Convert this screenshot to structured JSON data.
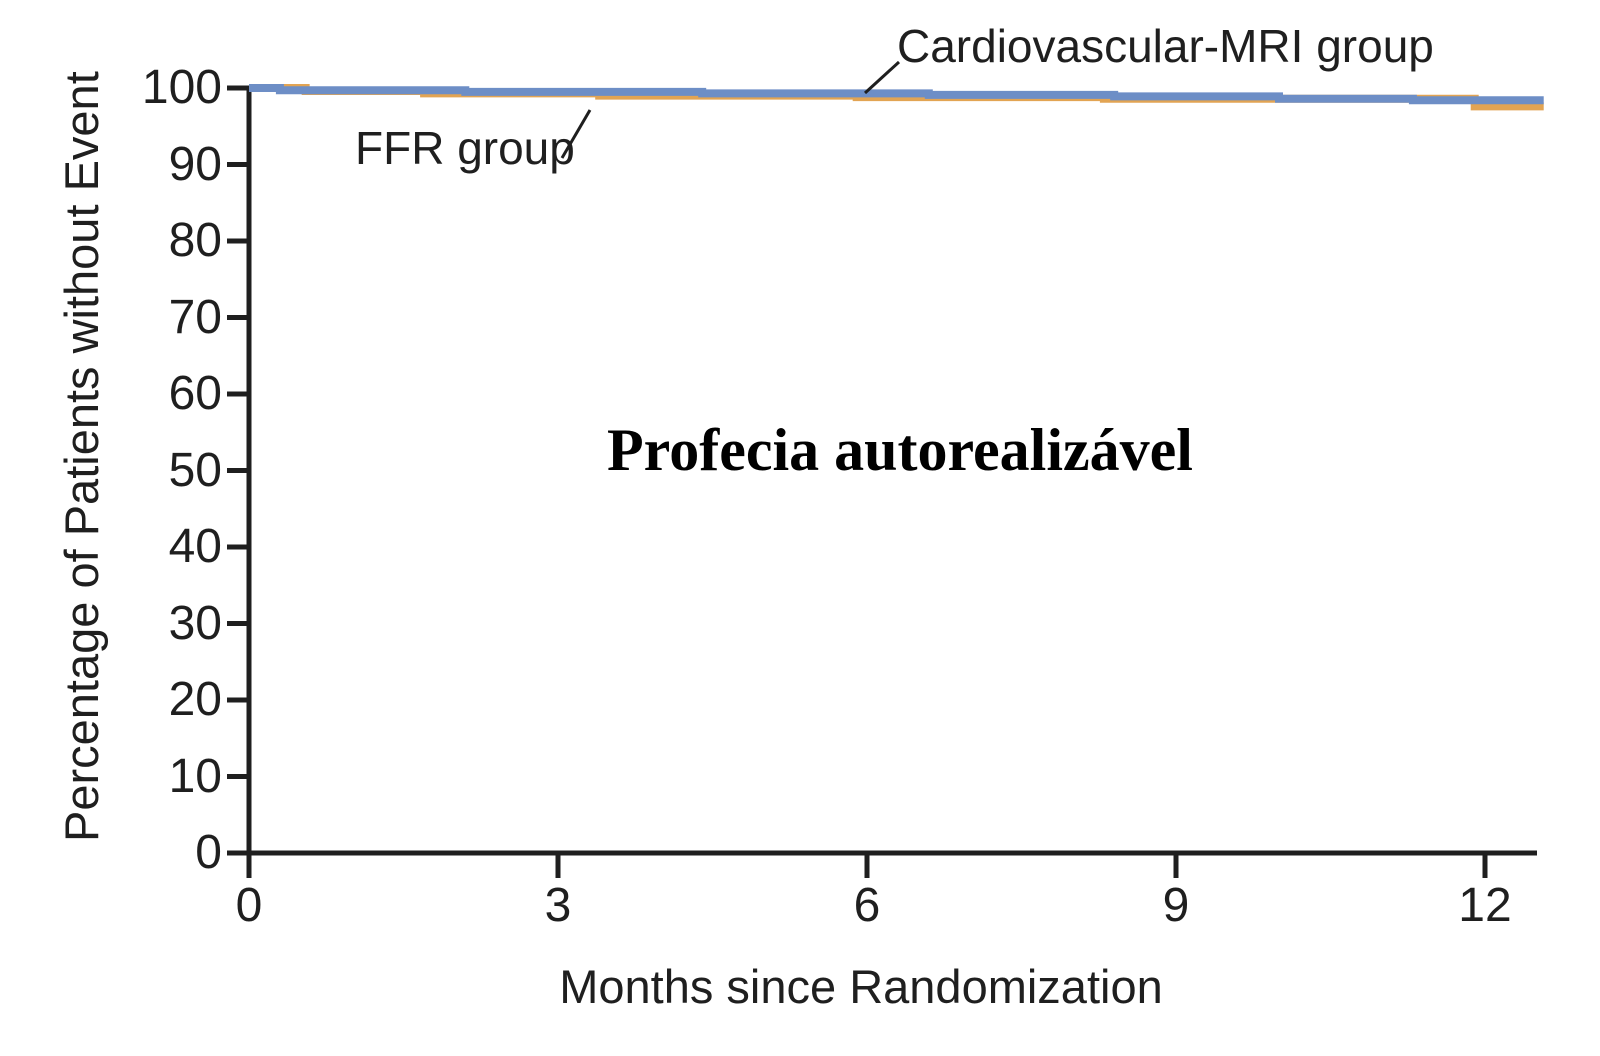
{
  "figure": {
    "background": "#ffffff",
    "annotation": "Profecia autorealizável",
    "axis_color": "#1f1f1f"
  },
  "chart_data": {
    "type": "line",
    "subtype": "kaplan-meier-step-survival",
    "title": "",
    "xlabel": "Months since Randomization",
    "ylabel": "Percentage of Patients without Event",
    "xlim": [
      0,
      12.6
    ],
    "ylim": [
      0,
      100
    ],
    "xticks": [
      0,
      3,
      6,
      9,
      12
    ],
    "yticks": [
      0,
      10,
      20,
      30,
      40,
      50,
      60,
      70,
      80,
      90,
      100
    ],
    "grid": false,
    "legend_position": "inline-callouts",
    "annotations": [
      {
        "text": "Profecia autorealizável",
        "position": "plot-center",
        "style": "bold-serif"
      },
      {
        "text": "Cardiovascular-MRI group",
        "role": "series-callout",
        "points_to": "Cardiovascular-MRI group"
      },
      {
        "text": "FFR group",
        "role": "series-callout",
        "points_to": "FFR group"
      }
    ],
    "series": [
      {
        "name": "FFR group",
        "color": "#e2a453",
        "steps": [
          [
            0,
            100
          ],
          [
            0.55,
            99.6
          ],
          [
            1.7,
            99.3
          ],
          [
            3.4,
            99.0
          ],
          [
            5.9,
            98.8
          ],
          [
            8.3,
            98.6
          ],
          [
            11.9,
            97.6
          ]
        ],
        "end_x": 12.57
      },
      {
        "name": "Cardiovascular-MRI group",
        "color": "#6d8ec6",
        "steps": [
          [
            0,
            100
          ],
          [
            0.3,
            99.7
          ],
          [
            2.1,
            99.5
          ],
          [
            4.4,
            99.3
          ],
          [
            6.6,
            99.1
          ],
          [
            8.4,
            98.9
          ],
          [
            10.0,
            98.6
          ],
          [
            11.3,
            98.4
          ]
        ],
        "end_x": 12.57
      }
    ]
  }
}
